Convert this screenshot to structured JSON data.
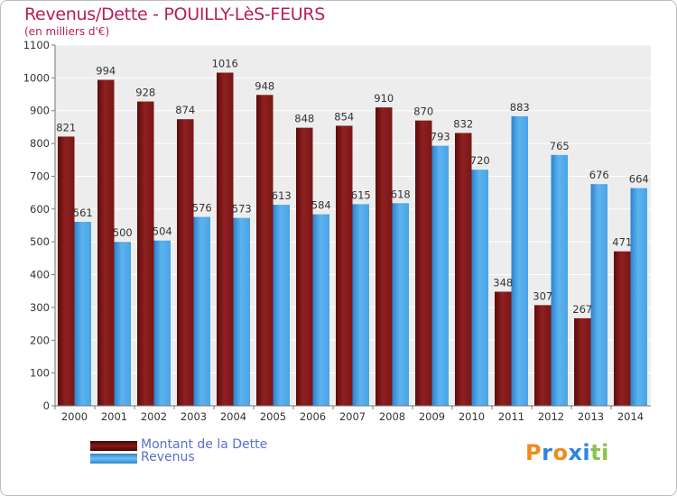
{
  "header": {
    "title": "Revenus/Dette - POUILLY-LèS-FEURS",
    "subtitle": "(en milliers d'€)"
  },
  "chart_data": {
    "type": "bar",
    "categories": [
      "2000",
      "2001",
      "2002",
      "2003",
      "2004",
      "2005",
      "2006",
      "2007",
      "2008",
      "2009",
      "2010",
      "2011",
      "2012",
      "2013",
      "2014"
    ],
    "series": [
      {
        "name": "Montant de la Dette",
        "color": "#8b1a1a",
        "values": [
          821,
          994,
          928,
          874,
          1016,
          948,
          848,
          854,
          910,
          870,
          832,
          348,
          307,
          267,
          471
        ],
        "labels": [
          "821",
          "994",
          "928",
          "874",
          "1016",
          "948",
          "848",
          "854",
          "910",
          "870",
          "832",
          "348",
          "307",
          "267",
          "471"
        ]
      },
      {
        "name": "Revenus",
        "color": "#4aa3e8",
        "values": [
          561,
          500,
          504,
          576,
          573,
          613,
          584,
          615,
          618,
          793,
          720,
          883,
          765,
          676,
          664
        ],
        "labels": [
          "561",
          "500",
          "504",
          "576",
          "573",
          "613",
          "584",
          "615",
          "618",
          "793",
          "720",
          "883",
          "765",
          "676",
          "664"
        ]
      }
    ],
    "y_ticks": [
      "0",
      "100",
      "200",
      "300",
      "400",
      "500",
      "600",
      "700",
      "800",
      "900",
      "1000",
      "1100"
    ],
    "ylim": [
      0,
      1100
    ],
    "grid": true,
    "legend_position": "bottom-left"
  },
  "logo": {
    "letters": [
      "P",
      "r",
      "o",
      "x",
      "i",
      "t",
      "i"
    ],
    "colors": [
      "#f08a1c",
      "#2e86de",
      "#f08a1c",
      "#2e86de",
      "#2e86de",
      "#8bc34a",
      "#8bc34a"
    ]
  }
}
